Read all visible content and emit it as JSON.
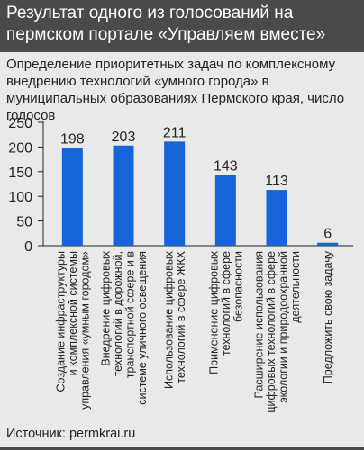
{
  "header": {
    "title": "Результат одного из голосований на пермском портале «Управляем вместе»"
  },
  "subtitle": "Определение приоритетных задач по комплексному внедрению технологий «умного города» в муниципальных образованиях Пермского края, число голосов",
  "source": "Источник: permkrai.ru",
  "colors": {
    "bar": "#1565d8",
    "header_bg": "#4a4a4a",
    "background": "#e9e9e9"
  },
  "chart_data": {
    "type": "bar",
    "title": "",
    "xlabel": "",
    "ylabel": "",
    "ylim": [
      0,
      250
    ],
    "yticks": [
      0,
      50,
      100,
      150,
      200,
      250
    ],
    "grid": false,
    "categories": [
      [
        "Создание инфраструктуры",
        "и комплексной системы",
        "управления «умным городом»"
      ],
      [
        "Внедрение цифровых",
        "технологий в дорожной,",
        "транспортной сфере и в",
        "системе уличного освещения"
      ],
      [
        "Использование цифровых",
        "технологий в сфере ЖКХ"
      ],
      [
        "Применение цифровых",
        "технологий в сфере",
        "безопасности"
      ],
      [
        "Расширение использования",
        "цифровых технологий в сфере",
        "экологии и природоохранной",
        "деятельности"
      ],
      [
        "Предложить свою задачу"
      ]
    ],
    "values": [
      198,
      203,
      211,
      143,
      113,
      6
    ]
  }
}
